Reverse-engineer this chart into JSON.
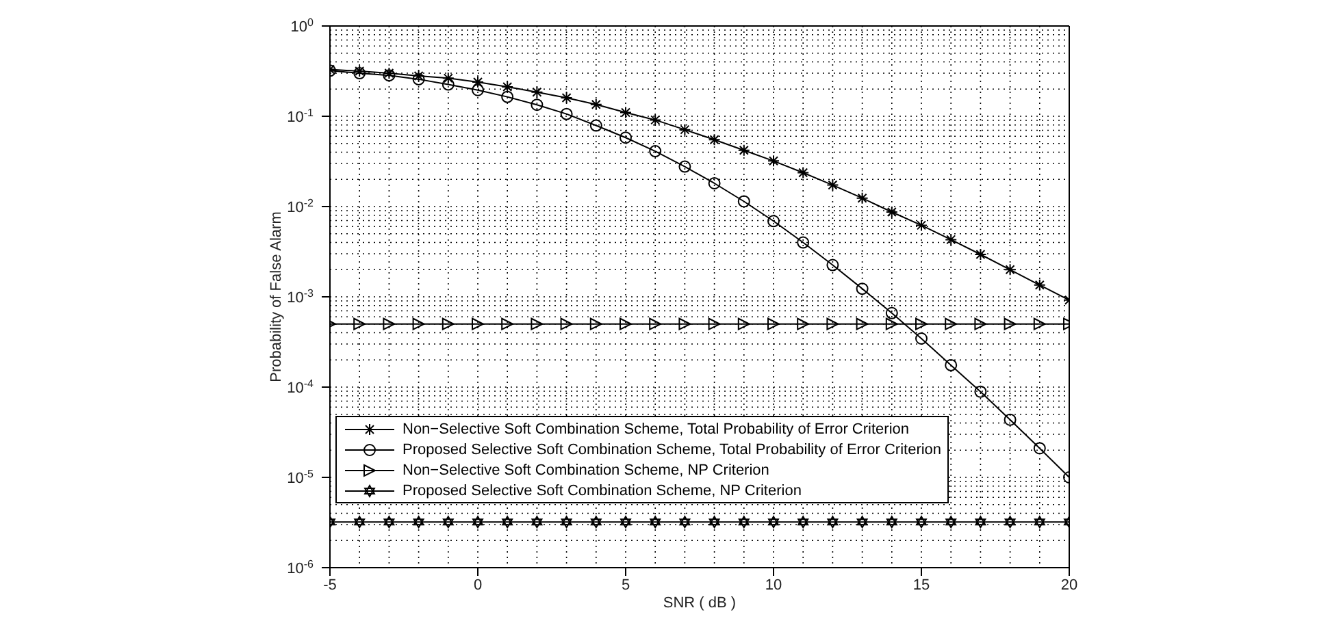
{
  "chart_data": {
    "type": "line",
    "xlabel": "SNR ( dB )",
    "ylabel": "Probability of False Alarm",
    "x": [
      -5,
      -4,
      -3,
      -2,
      -1,
      0,
      1,
      2,
      3,
      4,
      5,
      6,
      7,
      8,
      9,
      10,
      11,
      12,
      13,
      14,
      15,
      16,
      17,
      18,
      19,
      20
    ],
    "series": [
      {
        "name": "Non−Selective Soft Combination Scheme, Total Probability of Error Criterion",
        "color": "#000000",
        "marker": "cross",
        "values": [
          0.33,
          0.316,
          0.3,
          0.28,
          0.264,
          0.239,
          0.212,
          0.185,
          0.16,
          0.135,
          0.11,
          0.091,
          0.071,
          0.055,
          0.042,
          0.032,
          0.0237,
          0.0173,
          0.0124,
          0.0087,
          0.0062,
          0.0043,
          0.00295,
          0.002,
          0.00135,
          0.00092
        ]
      },
      {
        "name": "Proposed Selective Soft Combination Scheme, Total Probability of Error Criterion",
        "color": "#000000",
        "marker": "circle",
        "values": [
          0.32,
          0.3,
          0.284,
          0.257,
          0.225,
          0.195,
          0.164,
          0.134,
          0.106,
          0.079,
          0.058,
          0.041,
          0.0277,
          0.0181,
          0.0114,
          0.0069,
          0.004,
          0.00225,
          0.00123,
          0.00066,
          0.000345,
          0.000175,
          8.9e-05,
          4.35e-05,
          2.1e-05,
          1e-05
        ]
      },
      {
        "name": "Non−Selective Soft Combination Scheme, NP Criterion",
        "color": "#000000",
        "marker": "triangle",
        "values": [
          0.0005,
          0.0005,
          0.0005,
          0.0005,
          0.0005,
          0.0005,
          0.0005,
          0.0005,
          0.0005,
          0.0005,
          0.0005,
          0.0005,
          0.0005,
          0.0005,
          0.0005,
          0.0005,
          0.0005,
          0.0005,
          0.0005,
          0.0005,
          0.0005,
          0.0005,
          0.0005,
          0.0005,
          0.0005,
          0.0005
        ]
      },
      {
        "name": "Proposed Selective Soft Combination Scheme, NP Criterion",
        "color": "#000000",
        "marker": "star",
        "values": [
          3.2e-06,
          3.2e-06,
          3.2e-06,
          3.2e-06,
          3.2e-06,
          3.2e-06,
          3.2e-06,
          3.2e-06,
          3.2e-06,
          3.2e-06,
          3.2e-06,
          3.2e-06,
          3.2e-06,
          3.2e-06,
          3.2e-06,
          3.2e-06,
          3.2e-06,
          3.2e-06,
          3.2e-06,
          3.2e-06,
          3.2e-06,
          3.2e-06,
          3.2e-06,
          3.2e-06,
          3.2e-06,
          3.2e-06
        ]
      }
    ],
    "xlim": [
      -5,
      20
    ],
    "xticks": [
      -5,
      0,
      5,
      10,
      15,
      20
    ],
    "ylim": [
      1e-06,
      1
    ],
    "yticks": [
      {
        "value": 1e-06,
        "label": "10$^{-6}$"
      },
      {
        "value": 1e-05,
        "label": "10$^{-5}$"
      },
      {
        "value": 0.0001,
        "label": "10$^{-4}$"
      },
      {
        "value": 0.001,
        "label": "10$^{-3}$"
      },
      {
        "value": 0.01,
        "label": "10$^{-2}$"
      },
      {
        "value": 0.1,
        "label": "10$^{-1}$"
      },
      {
        "value": 1,
        "label": "10$^{0}$"
      }
    ],
    "log": "y",
    "grid": true,
    "legend": "bottom left",
    "line_style": "solid"
  }
}
